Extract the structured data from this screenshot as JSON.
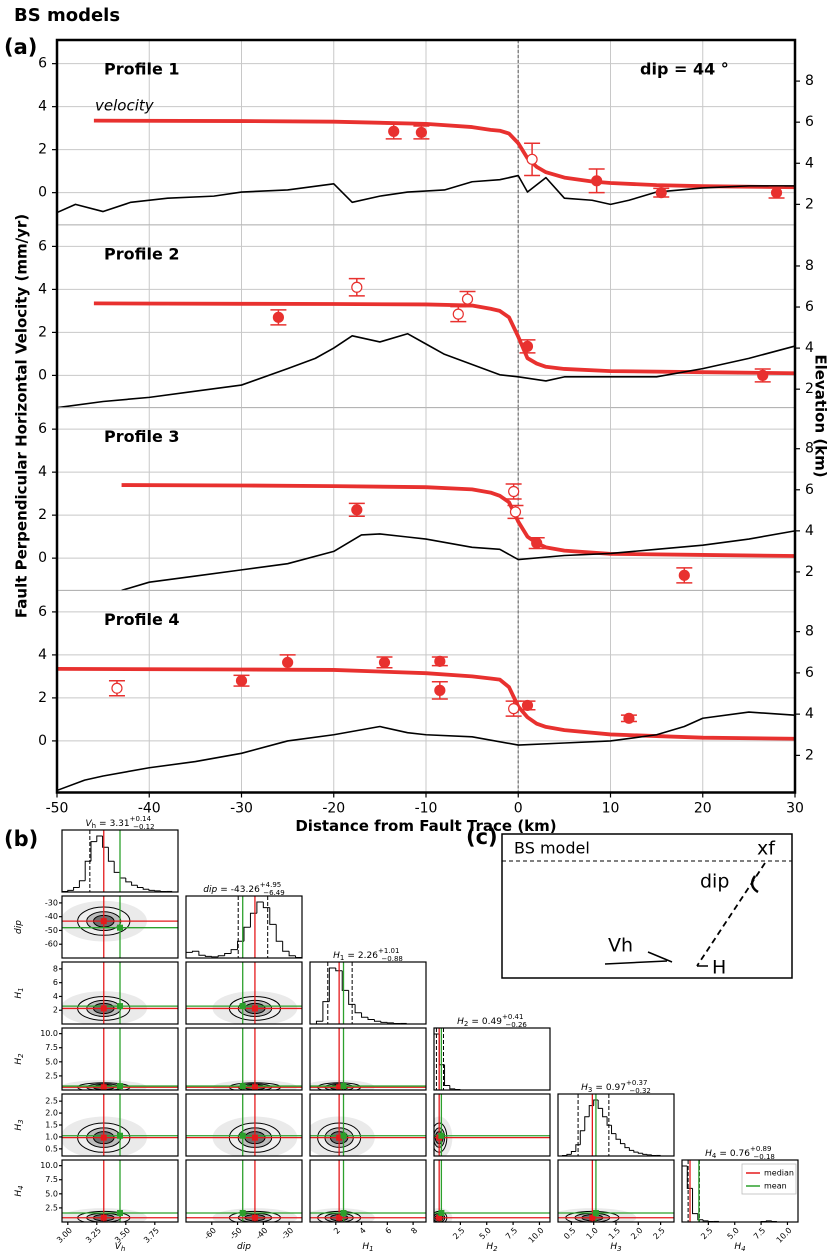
{
  "title": "BS models",
  "panel_labels": [
    "(a)",
    "(b)",
    "(c)"
  ],
  "chart_data": [
    {
      "type": "line",
      "title": "Profile 1",
      "annotation": "dip = 44 °",
      "ylabel": "Fault Perpendicular Horizontal Velocity (mm/yr)",
      "y2label": "Elevation (km)",
      "xlim": [
        -50,
        30
      ],
      "xticks": [
        -50,
        -40,
        -30,
        -20,
        -10,
        0,
        10,
        20,
        30
      ],
      "ylim": [
        -1.5,
        7.1
      ],
      "yticks": [
        0,
        2,
        4,
        6
      ],
      "y2lim": [
        1.0,
        10.0
      ],
      "y2ticks": [
        2,
        4,
        6,
        8
      ],
      "grid": true,
      "vline_x": 0,
      "series": [
        {
          "name": "velocity",
          "color": "#e8312f",
          "x": [
            -46,
            -30,
            -20,
            -10,
            -5,
            -3,
            -2,
            -1,
            0,
            1,
            2,
            3,
            5,
            8,
            10,
            15,
            20,
            30
          ],
          "values": [
            3.35,
            3.33,
            3.3,
            3.2,
            3.05,
            2.92,
            2.88,
            2.75,
            2.3,
            1.6,
            1.2,
            0.95,
            0.7,
            0.52,
            0.45,
            0.35,
            0.3,
            0.25
          ]
        },
        {
          "color": "#000000",
          "axis": "y2",
          "x": [
            -50,
            -48,
            -45,
            -42,
            -38,
            -33,
            -30,
            -25,
            -20,
            -18,
            -15,
            -12,
            -8,
            -5,
            -2,
            0,
            1,
            3,
            5,
            8,
            10,
            12,
            15,
            20,
            25,
            30
          ],
          "values": [
            1.6,
            2.0,
            1.65,
            2.1,
            2.3,
            2.4,
            2.6,
            2.7,
            3.0,
            2.1,
            2.4,
            2.6,
            2.7,
            3.1,
            3.2,
            3.4,
            2.6,
            3.3,
            2.3,
            2.2,
            2.0,
            2.2,
            2.6,
            2.8,
            2.9,
            2.9
          ]
        }
      ],
      "observations": {
        "x": [
          -13.5,
          -10.5,
          1.5,
          8.5,
          15.5,
          28
        ],
        "values": [
          2.85,
          2.8,
          1.55,
          0.55,
          0.0,
          0.0
        ],
        "errors": [
          0.35,
          0.3,
          0.75,
          0.55,
          0.2,
          0.25
        ],
        "filled": [
          true,
          true,
          false,
          true,
          true,
          true
        ]
      }
    },
    {
      "type": "line",
      "title": "Profile 2",
      "xlim": [
        -50,
        30
      ],
      "xticks": [
        -50,
        -40,
        -30,
        -20,
        -10,
        0,
        10,
        20,
        30
      ],
      "ylim": [
        -1.5,
        7.0
      ],
      "yticks": [
        0,
        2,
        4,
        6
      ],
      "y2lim": [
        1.1,
        10.0
      ],
      "y2ticks": [
        2,
        4,
        6,
        8
      ],
      "grid": true,
      "vline_x": 0,
      "series": [
        {
          "color": "#e8312f",
          "x": [
            -46,
            -30,
            -20,
            -10,
            -5,
            -3,
            -2,
            -1,
            0,
            1,
            2,
            3,
            5,
            10,
            20,
            30
          ],
          "values": [
            3.35,
            3.33,
            3.32,
            3.3,
            3.25,
            3.1,
            3.0,
            2.7,
            1.8,
            0.8,
            0.55,
            0.4,
            0.3,
            0.2,
            0.15,
            0.1
          ]
        },
        {
          "color": "#000000",
          "axis": "y2",
          "x": [
            -50,
            -45,
            -40,
            -35,
            -30,
            -25,
            -22,
            -20,
            -18,
            -15,
            -12,
            -10,
            -8,
            -5,
            -2,
            0,
            3,
            5,
            10,
            15,
            20,
            25,
            30
          ],
          "values": [
            1.1,
            1.4,
            1.6,
            1.9,
            2.2,
            3.0,
            3.5,
            4.0,
            4.6,
            4.3,
            4.7,
            4.2,
            3.7,
            3.2,
            2.7,
            2.6,
            2.4,
            2.6,
            2.6,
            2.6,
            3.0,
            3.5,
            4.1
          ]
        }
      ],
      "observations": {
        "x": [
          -26,
          -17.5,
          -6.5,
          -5.5,
          1,
          26.5
        ],
        "values": [
          2.7,
          4.1,
          2.85,
          3.55,
          1.35,
          0.0
        ],
        "errors": [
          0.35,
          0.4,
          0.35,
          0.35,
          0.3,
          0.3
        ],
        "filled": [
          true,
          false,
          false,
          false,
          true,
          true
        ]
      }
    },
    {
      "type": "line",
      "title": "Profile 3",
      "xlim": [
        -50,
        30
      ],
      "xticks": [
        -50,
        -40,
        -30,
        -20,
        -10,
        0,
        10,
        20,
        30
      ],
      "ylim": [
        -1.5,
        7.0
      ],
      "yticks": [
        0,
        2,
        4,
        6
      ],
      "y2lim": [
        1.1,
        10.0
      ],
      "y2ticks": [
        2,
        4,
        6,
        8
      ],
      "grid": true,
      "vline_x": 0,
      "series": [
        {
          "color": "#e8312f",
          "x": [
            -43,
            -30,
            -20,
            -10,
            -5,
            -3,
            -2,
            -1,
            0,
            1,
            2,
            3,
            5,
            10,
            20,
            30
          ],
          "values": [
            3.4,
            3.38,
            3.35,
            3.3,
            3.2,
            3.05,
            2.9,
            2.6,
            1.7,
            1.0,
            0.7,
            0.5,
            0.35,
            0.2,
            0.15,
            0.1
          ]
        },
        {
          "color": "#000000",
          "axis": "y2",
          "x": [
            -43,
            -40,
            -35,
            -30,
            -25,
            -20,
            -17,
            -15,
            -12,
            -10,
            -5,
            -2,
            0,
            5,
            10,
            15,
            20,
            25,
            30
          ],
          "values": [
            1.1,
            1.5,
            1.8,
            2.1,
            2.4,
            3.0,
            3.8,
            3.85,
            3.7,
            3.6,
            3.2,
            3.1,
            2.6,
            2.8,
            2.9,
            3.1,
            3.3,
            3.6,
            4.0
          ]
        }
      ],
      "observations": {
        "x": [
          -17.5,
          -0.5,
          -0.3,
          2,
          18
        ],
        "values": [
          2.25,
          3.1,
          2.15,
          0.7,
          -0.8
        ],
        "errors": [
          0.3,
          0.35,
          0.3,
          0.25,
          0.35
        ],
        "filled": [
          true,
          false,
          false,
          true,
          true
        ]
      }
    },
    {
      "type": "line",
      "title": "Profile 4",
      "xlabel": "Distance from Fault Trace (km)",
      "xlim": [
        -50,
        30
      ],
      "xticks": [
        -50,
        -40,
        -30,
        -20,
        -10,
        0,
        10,
        20,
        30
      ],
      "ylim": [
        -2.4,
        7.0
      ],
      "yticks": [
        0,
        2,
        4,
        6
      ],
      "y2lim": [
        0.2,
        10.0
      ],
      "y2ticks": [
        2,
        4,
        6,
        8
      ],
      "grid": true,
      "vline_x": 0,
      "series": [
        {
          "color": "#e8312f",
          "x": [
            -50,
            -30,
            -20,
            -10,
            -5,
            -3,
            -2,
            -1,
            0,
            1,
            2,
            3,
            5,
            10,
            20,
            30
          ],
          "values": [
            3.35,
            3.32,
            3.3,
            3.15,
            3.0,
            2.9,
            2.85,
            2.5,
            1.6,
            1.1,
            0.8,
            0.65,
            0.5,
            0.3,
            0.15,
            0.1
          ]
        },
        {
          "color": "#000000",
          "axis": "y2",
          "x": [
            -50,
            -47,
            -45,
            -40,
            -35,
            -30,
            -25,
            -20,
            -15,
            -12,
            -10,
            -5,
            0,
            5,
            10,
            15,
            18,
            20,
            25,
            30
          ],
          "values": [
            0.3,
            0.8,
            1.0,
            1.4,
            1.7,
            2.1,
            2.7,
            3.0,
            3.4,
            3.1,
            3.0,
            2.9,
            2.5,
            2.6,
            2.7,
            3.0,
            3.4,
            3.8,
            4.1,
            3.95
          ]
        }
      ],
      "observations": {
        "x": [
          -43.5,
          -30,
          -25,
          -14.5,
          -8.5,
          -8.5,
          -0.5,
          1,
          12
        ],
        "values": [
          2.45,
          2.8,
          3.65,
          3.65,
          3.7,
          2.35,
          1.5,
          1.65,
          1.05
        ],
        "errors": [
          0.35,
          0.25,
          0.35,
          0.25,
          0.2,
          0.4,
          0.35,
          0.2,
          0.15
        ],
        "filled": [
          false,
          true,
          true,
          true,
          true,
          true,
          false,
          true,
          true
        ]
      }
    },
    {
      "type": "corner",
      "legend": [
        {
          "name": "median",
          "color": "#e41a1c"
        },
        {
          "name": "mean",
          "color": "#2ca02c"
        }
      ],
      "parameters": [
        {
          "symbol": "V",
          "sub": "h",
          "relation": "=",
          "median": 3.31,
          "err_plus": {
            "value": 0.14,
            "label": "+0.14"
          },
          "err_minus": {
            "value": -0.12,
            "label": "−0.12"
          },
          "mean": 3.45,
          "lim": [
            2.95,
            3.95
          ],
          "ticks": [
            {
              "value": 3,
              "label": "3.00"
            },
            3.25,
            {
              "value": 3.5,
              "label": "3.50"
            },
            3.75
          ],
          "bins": [
            2.95,
            3.0,
            3.05,
            3.1,
            3.15,
            3.2,
            3.25,
            3.3,
            3.35,
            3.4,
            3.45,
            3.5,
            3.55,
            3.6,
            3.65,
            3.7,
            3.75,
            3.8,
            3.85,
            3.9,
            3.95
          ],
          "counts": [
            1,
            3,
            8,
            20,
            55,
            90,
            100,
            80,
            55,
            35,
            25,
            18,
            12,
            8,
            5,
            3,
            2,
            1,
            1,
            0
          ]
        },
        {
          "symbol": "dip",
          "relation": "=",
          "median": -43.26,
          "err_plus": {
            "value": 4.95,
            "label": "+4.95"
          },
          "err_minus": {
            "value": -6.49,
            "label": "−6.49"
          },
          "mean": -48,
          "lim": [
            -70,
            -25
          ],
          "ticks": [
            -60,
            -50,
            -40,
            -30
          ],
          "bins": [
            -70,
            -67.5,
            -65,
            -62.5,
            -60,
            -57.5,
            -55,
            -52.5,
            -50,
            -47.5,
            -45,
            -42.5,
            -40,
            -37.5,
            -35,
            -32.5,
            -30,
            -27.5,
            -25
          ],
          "counts": [
            10,
            12,
            5,
            3,
            2,
            4,
            8,
            15,
            30,
            55,
            80,
            100,
            90,
            60,
            30,
            12,
            4,
            1
          ]
        },
        {
          "symbol": "H",
          "sub": "1",
          "relation": "=",
          "median": 2.26,
          "err_plus": {
            "value": 1.01,
            "label": "+1.01"
          },
          "err_minus": {
            "value": -0.88,
            "label": "−0.88"
          },
          "mean": 2.6,
          "lim": [
            0,
            9
          ],
          "ticks": [
            2,
            4,
            6,
            8
          ],
          "bins": [
            0,
            0.5,
            1,
            1.5,
            2,
            2.5,
            3,
            3.5,
            4,
            4.5,
            5,
            5.5,
            6,
            6.5,
            7,
            7.5,
            8,
            8.5,
            9
          ],
          "counts": [
            0,
            5,
            40,
            100,
            95,
            60,
            35,
            20,
            12,
            8,
            5,
            3,
            2,
            1,
            1,
            0,
            0,
            0
          ]
        },
        {
          "symbol": "H",
          "sub": "2",
          "relation": "=",
          "median": 0.49,
          "err_plus": {
            "value": 0.41,
            "label": "+0.41"
          },
          "err_minus": {
            "value": -0.26,
            "label": "−0.26"
          },
          "mean": 0.7,
          "lim": [
            0,
            11
          ],
          "ticks": [
            2.5,
            {
              "value": 5,
              "label": "5.0"
            },
            7.5,
            {
              "value": 10,
              "label": "10.0"
            }
          ],
          "bins": [
            0,
            0.5,
            1,
            1.5,
            2,
            2.5,
            3,
            3.5,
            4,
            4.5,
            5,
            5.5,
            6,
            6.5,
            7,
            7.5,
            8,
            8.5,
            9,
            9.5,
            10,
            10.5,
            11
          ],
          "counts": [
            100,
            45,
            8,
            2,
            1,
            0,
            0,
            0,
            0,
            0,
            0,
            0,
            0,
            0,
            0,
            0,
            0,
            0,
            0,
            0,
            0,
            0
          ]
        },
        {
          "symbol": "H",
          "sub": "3",
          "relation": "=",
          "median": 0.97,
          "err_plus": {
            "value": 0.37,
            "label": "+0.37"
          },
          "err_minus": {
            "value": -0.32,
            "label": "−0.32"
          },
          "mean": 1.05,
          "lim": [
            0.2,
            2.8
          ],
          "ticks": [
            0.5,
            {
              "value": 1,
              "label": "1.0"
            },
            1.5,
            {
              "value": 2,
              "label": "2.0"
            },
            2.5
          ],
          "bins": [
            0.2,
            0.3,
            0.4,
            0.5,
            0.6,
            0.7,
            0.8,
            0.9,
            1.0,
            1.1,
            1.2,
            1.3,
            1.4,
            1.5,
            1.6,
            1.7,
            1.8,
            1.9,
            2.0,
            2.1,
            2.2,
            2.3,
            2.4,
            2.5,
            2.6,
            2.7,
            2.8
          ],
          "counts": [
            0,
            1,
            3,
            8,
            20,
            45,
            70,
            90,
            100,
            85,
            70,
            55,
            40,
            30,
            22,
            15,
            10,
            7,
            5,
            3,
            2,
            1,
            1,
            0,
            0,
            0
          ]
        },
        {
          "symbol": "H",
          "sub": "4",
          "relation": "=",
          "median": 0.76,
          "err_plus": {
            "value": 0.89,
            "label": "+0.89"
          },
          "err_minus": {
            "value": -0.18,
            "label": "−0.18"
          },
          "mean": 1.6,
          "lim": [
            0,
            11
          ],
          "ticks": [
            2.5,
            {
              "value": 5,
              "label": "5.0"
            },
            7.5,
            {
              "value": 10,
              "label": "10.0"
            }
          ],
          "bins": [
            0,
            0.5,
            1,
            1.5,
            2,
            2.5,
            3,
            3.5,
            4,
            4.5,
            5,
            5.5,
            6,
            6.5,
            7,
            7.5,
            8,
            8.5,
            9,
            9.5,
            10,
            10.5,
            11
          ],
          "counts": [
            100,
            60,
            15,
            4,
            2,
            1,
            1,
            0,
            0,
            0,
            0,
            0,
            0,
            0,
            0,
            1,
            2,
            1,
            0,
            0,
            0,
            0
          ]
        }
      ]
    }
  ],
  "panel_c": {
    "title": "BS model",
    "labels": [
      "xf",
      "dip",
      "Vh",
      "H"
    ]
  }
}
